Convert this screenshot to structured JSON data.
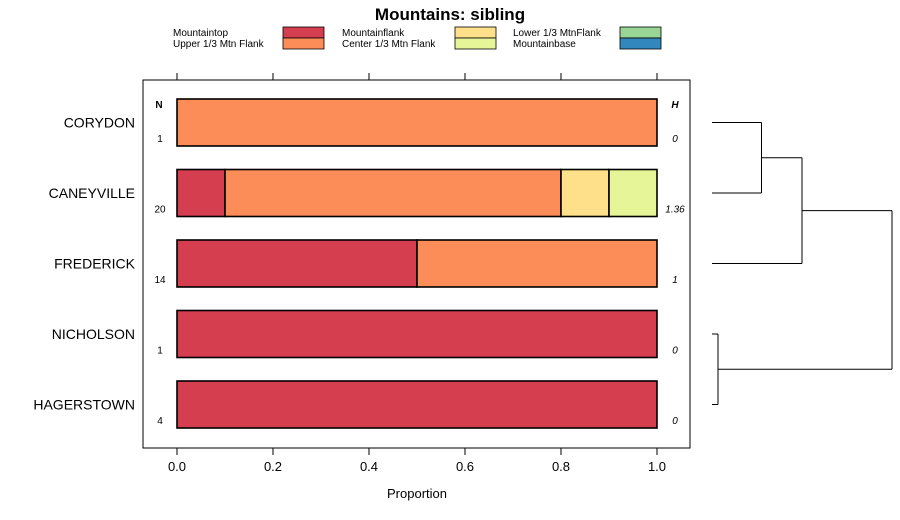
{
  "chart_data": {
    "type": "bar",
    "orientation": "horizontal",
    "stacked": true,
    "title": "Mountains: sibling",
    "xlabel": "Proportion",
    "ylabel": "",
    "xlim": [
      -0.07,
      1.07
    ],
    "x_ticks": [
      "0.0",
      "0.2",
      "0.4",
      "0.6",
      "0.8",
      "1.0"
    ],
    "x_tick_values": [
      0,
      0.2,
      0.4,
      0.6,
      0.8,
      1.0
    ],
    "n_header": "N",
    "h_header": "H",
    "legend": [
      {
        "name": "Mountaintop",
        "color": "#D53E4F"
      },
      {
        "name": "Upper 1/3 Mtn Flank",
        "color": "#FC8D59"
      },
      {
        "name": "Mountainflank",
        "color": "#FEE08B"
      },
      {
        "name": "Center 1/3 Mtn Flank",
        "color": "#E6F598"
      },
      {
        "name": "Lower 1/3 MtnFlank",
        "color": "#99D594"
      },
      {
        "name": "Mountainbase",
        "color": "#3288BD"
      }
    ],
    "categories": [
      "CORYDON",
      "CANEYVILLE",
      "FREDERICK",
      "NICHOLSON",
      "HAGERSTOWN"
    ],
    "n_values": [
      "1",
      "20",
      "14",
      "1",
      "4"
    ],
    "h_values": [
      "0",
      "1.36",
      "1",
      "0",
      "0"
    ],
    "series": [
      {
        "name": "Mountaintop",
        "values": [
          0,
          0.1,
          0.5,
          1.0,
          1.0
        ]
      },
      {
        "name": "Upper 1/3 Mtn Flank",
        "values": [
          1.0,
          0.7,
          0.5,
          0,
          0
        ]
      },
      {
        "name": "Mountainflank",
        "values": [
          0,
          0.1,
          0,
          0,
          0
        ]
      },
      {
        "name": "Center 1/3 Mtn Flank",
        "values": [
          0,
          0.1,
          0,
          0,
          0
        ]
      },
      {
        "name": "Lower 1/3 MtnFlank",
        "values": [
          0,
          0,
          0,
          0,
          0
        ]
      },
      {
        "name": "Mountainbase",
        "values": [
          0,
          0,
          0,
          0,
          0
        ]
      }
    ],
    "dendrogram": {
      "merges": [
        {
          "left": "CORYDON",
          "right": "CANEYVILLE",
          "height": 0.55
        },
        {
          "left": "CORYDON+CANEYVILLE",
          "right": "FREDERICK",
          "height": 1.0
        },
        {
          "left": "NICHOLSON",
          "right": "HAGERSTOWN",
          "height": 0.0
        },
        {
          "left": "CORYDON+CANEYVILLE+FREDERICK",
          "right": "NICHOLSON+HAGERSTOWN",
          "height": 2.0
        }
      ]
    }
  }
}
